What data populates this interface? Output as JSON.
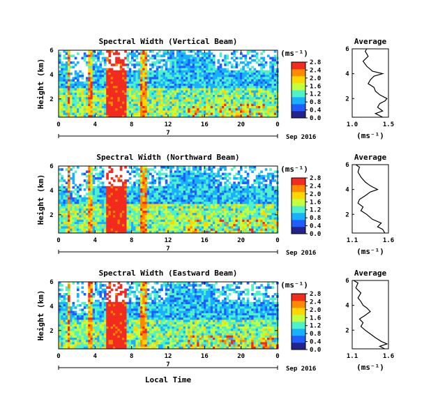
{
  "figure": {
    "xlabel": "Local Time",
    "date_label": "7",
    "month_label": "Sep 2016"
  },
  "chart_data": [
    {
      "type": "heatmap",
      "title": "Spectral Width (Vertical Beam)",
      "ylabel": "Height (km)",
      "y_ticks": [
        "6",
        "4",
        "2"
      ],
      "x_ticks": [
        "0",
        "4",
        "8",
        "12",
        "16",
        "20",
        "0"
      ],
      "xlim": [
        0,
        24
      ],
      "ylim": [
        0.5,
        6
      ],
      "colorbar": {
        "unit": "(ms⁻¹)",
        "min": 0.0,
        "max": 2.8,
        "tick_labels": [
          "2.8",
          "2.4",
          "2.0",
          "1.6",
          "1.2",
          "0.8",
          "0.4",
          "0.0"
        ],
        "colors": [
          "#23238c",
          "#1f5dff",
          "#19b0ff",
          "#4ff2c8",
          "#c2ff3e",
          "#ffd700",
          "#ff8a00",
          "#f22a1f"
        ]
      },
      "rain_columns_hours": [
        [
          0.8,
          1.2
        ],
        [
          3.0,
          3.7
        ],
        [
          5.0,
          7.3
        ],
        [
          8.7,
          9.6
        ]
      ],
      "average_profile": {
        "title": "Average",
        "xlabel": "(ms⁻¹)",
        "x_ticks": [
          "1.0",
          "1.5"
        ],
        "xlim": [
          1.0,
          1.5
        ],
        "y_ticks": [
          "6",
          "4",
          "2"
        ],
        "height_km": [
          0.5,
          0.8,
          1.0,
          1.3,
          1.6,
          1.8,
          2.0,
          2.3,
          2.6,
          2.9,
          3.2,
          3.5,
          3.8,
          4.0,
          4.2,
          4.6,
          5.0,
          5.4,
          5.8,
          6.0
        ],
        "width_ms": [
          1.42,
          1.32,
          1.42,
          1.35,
          1.38,
          1.45,
          1.48,
          1.38,
          1.32,
          1.3,
          1.22,
          1.25,
          1.3,
          1.42,
          1.28,
          1.2,
          1.15,
          1.22,
          1.18,
          1.2
        ]
      }
    },
    {
      "type": "heatmap",
      "title": "Spectral Width (Northward Beam)",
      "ylabel": "Height (km)",
      "y_ticks": [
        "6",
        "4",
        "2"
      ],
      "x_ticks": [
        "0",
        "4",
        "8",
        "12",
        "16",
        "20",
        "0"
      ],
      "xlim": [
        0,
        24
      ],
      "ylim": [
        0.5,
        6
      ],
      "colorbar": {
        "unit": "(ms⁻¹)",
        "min": 0.0,
        "max": 2.8,
        "tick_labels": [
          "2.8",
          "2.4",
          "2.0",
          "1.6",
          "1.2",
          "0.8",
          "0.4",
          "0.0"
        ],
        "colors": [
          "#23238c",
          "#1f5dff",
          "#19b0ff",
          "#4ff2c8",
          "#c2ff3e",
          "#ffd700",
          "#ff8a00",
          "#f22a1f"
        ]
      },
      "rain_columns_hours": [
        [
          0.8,
          1.2
        ],
        [
          3.0,
          3.7
        ],
        [
          5.0,
          7.3
        ],
        [
          8.7,
          9.6
        ]
      ],
      "average_profile": {
        "title": "Average",
        "xlabel": "(ms⁻¹)",
        "x_ticks": [
          "1.1",
          "1.6"
        ],
        "xlim": [
          1.1,
          1.6
        ],
        "y_ticks": [
          "6",
          "4",
          "2"
        ],
        "height_km": [
          0.5,
          0.8,
          1.0,
          1.3,
          1.6,
          2.0,
          2.3,
          2.6,
          2.9,
          3.2,
          3.5,
          3.8,
          4.0,
          4.3,
          4.6,
          5.0,
          5.4,
          5.8,
          6.0
        ],
        "width_ms": [
          1.55,
          1.52,
          1.45,
          1.5,
          1.38,
          1.3,
          1.22,
          1.25,
          1.18,
          1.2,
          1.28,
          1.35,
          1.45,
          1.35,
          1.28,
          1.22,
          1.18,
          1.2,
          1.15
        ]
      }
    },
    {
      "type": "heatmap",
      "title": "Spectral Width (Eastward Beam)",
      "ylabel": "Height (km)",
      "y_ticks": [
        "6",
        "4",
        "2"
      ],
      "x_ticks": [
        "0",
        "4",
        "8",
        "12",
        "16",
        "20",
        "0"
      ],
      "xlim": [
        0,
        24
      ],
      "ylim": [
        0.5,
        6
      ],
      "colorbar": {
        "unit": "(ms⁻¹)",
        "min": 0.0,
        "max": 2.8,
        "tick_labels": [
          "2.8",
          "2.4",
          "2.0",
          "1.6",
          "1.2",
          "0.8",
          "0.4",
          "0.0"
        ],
        "colors": [
          "#23238c",
          "#1f5dff",
          "#19b0ff",
          "#4ff2c8",
          "#c2ff3e",
          "#ffd700",
          "#ff8a00",
          "#f22a1f"
        ]
      },
      "rain_columns_hours": [
        [
          0.8,
          1.2
        ],
        [
          3.0,
          3.7
        ],
        [
          5.0,
          7.3
        ],
        [
          8.7,
          9.6
        ]
      ],
      "average_profile": {
        "title": "Average",
        "xlabel": "(ms⁻¹)",
        "x_ticks": [
          "1.1",
          "1.6"
        ],
        "xlim": [
          1.1,
          1.6
        ],
        "y_ticks": [
          "6",
          "4",
          "2"
        ],
        "height_km": [
          0.5,
          0.7,
          0.9,
          1.1,
          1.4,
          1.7,
          2.0,
          2.3,
          2.6,
          2.9,
          3.2,
          3.5,
          3.8,
          4.0,
          4.3,
          4.6,
          5.0,
          5.4,
          5.8,
          6.0
        ],
        "width_ms": [
          1.55,
          1.48,
          1.58,
          1.5,
          1.42,
          1.35,
          1.28,
          1.22,
          1.25,
          1.2,
          1.28,
          1.35,
          1.3,
          1.25,
          1.22,
          1.18,
          1.22,
          1.15,
          1.18,
          1.12
        ]
      }
    }
  ]
}
